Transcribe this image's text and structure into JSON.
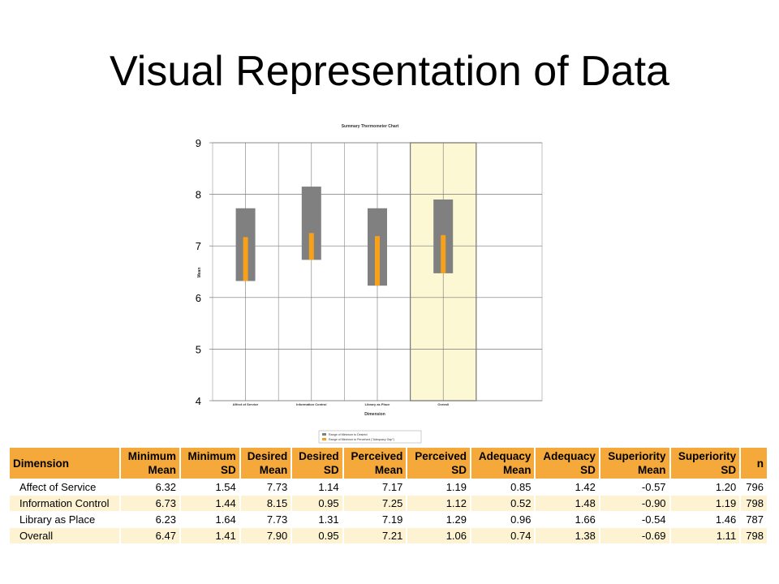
{
  "slide": {
    "title": "Visual Representation of Data"
  },
  "chart_data": {
    "type": "bar",
    "title": "Summary Thermometer Chart",
    "xlabel": "Dimension",
    "ylabel": "Mean",
    "ylim": [
      4,
      9
    ],
    "y_ticks": [
      "4",
      "5",
      "6",
      "7",
      "8",
      "9"
    ],
    "categories": [
      "Affect of Service",
      "Information Control",
      "Library as Place",
      "Overall"
    ],
    "highlighted_category": "Overall",
    "series": [
      {
        "name": "Range of Minimum to Desired",
        "color": "#808080",
        "low": [
          6.32,
          6.73,
          6.23,
          6.47
        ],
        "high": [
          7.73,
          8.15,
          7.73,
          7.9
        ]
      },
      {
        "name": "Range of Minimum to Perceived (\"Adequacy Gap\")",
        "color": "#f7a11a",
        "low": [
          6.32,
          6.73,
          6.23,
          6.47
        ],
        "high": [
          7.17,
          7.25,
          7.19,
          7.21
        ]
      }
    ],
    "grid": true,
    "legend_position": "bottom"
  },
  "table": {
    "headers": [
      [
        "Dimension"
      ],
      [
        "Minimum",
        "Mean"
      ],
      [
        "Minimum",
        "SD"
      ],
      [
        "Desired",
        "Mean"
      ],
      [
        "Desired",
        "SD"
      ],
      [
        "Perceived",
        "Mean"
      ],
      [
        "Perceived",
        "SD"
      ],
      [
        "Adequacy",
        "Mean"
      ],
      [
        "Adequacy",
        "SD"
      ],
      [
        "Superiority",
        "Mean"
      ],
      [
        "Superiority",
        "SD"
      ],
      [
        "n"
      ]
    ],
    "rows": [
      [
        "Affect of Service",
        "6.32",
        "1.54",
        "7.73",
        "1.14",
        "7.17",
        "1.19",
        "0.85",
        "1.42",
        "-0.57",
        "1.20",
        "796"
      ],
      [
        "Information Control",
        "6.73",
        "1.44",
        "8.15",
        "0.95",
        "7.25",
        "1.12",
        "0.52",
        "1.48",
        "-0.90",
        "1.19",
        "798"
      ],
      [
        "Library as Place",
        "6.23",
        "1.64",
        "7.73",
        "1.31",
        "7.19",
        "1.29",
        "0.96",
        "1.66",
        "-0.54",
        "1.46",
        "787"
      ],
      [
        "Overall",
        "6.47",
        "1.41",
        "7.90",
        "0.95",
        "7.21",
        "1.06",
        "0.74",
        "1.38",
        "-0.69",
        "1.11",
        "798"
      ]
    ]
  }
}
